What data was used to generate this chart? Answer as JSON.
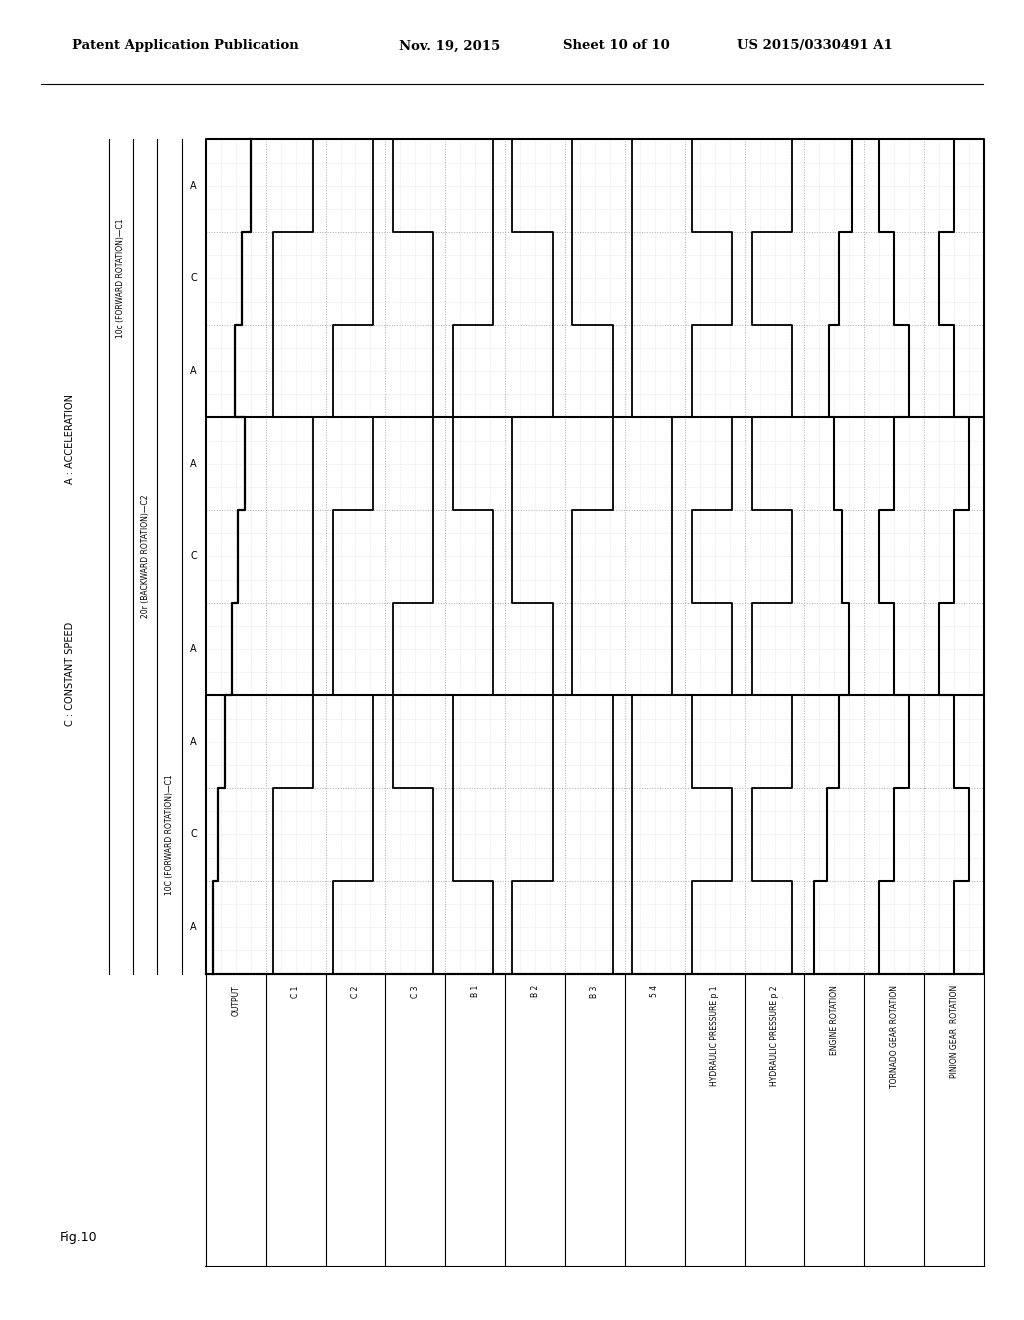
{
  "header_left": "Patent Application Publication",
  "header_mid": "Nov. 19, 2015  Sheet 10 of 10",
  "header_right": "US 2015/0330491 A1",
  "fig_label": "Fig.10",
  "legend_A": "A : ACCELERATION",
  "legend_C": "C : CONSTANT SPEED",
  "section_headers": [
    "10C (FORWARD ROTATION)—C1",
    "20r (BACKWARD ROTATION)—C2",
    "10c (FORWARD ROTATION)—C1"
  ],
  "sub_phase_labels": [
    "A",
    "C",
    "A",
    "A",
    "C",
    "A",
    "A",
    "C",
    "A"
  ],
  "row_labels": [
    "OUTPUT",
    "C 1",
    "C 2",
    "C 3",
    "B 1",
    "B 2",
    "B 3",
    "5 4",
    "HYDRAULIC PRESSURE p 1",
    "HYDRAULIC PRESSURE p 2",
    "ENGINE ROTATION",
    "TORNADO GEAR ROTATION",
    "PINION GEAR  ROTATION"
  ],
  "waveforms": {
    "OUTPUT": [
      0.15,
      0.25,
      0.42,
      0.52,
      0.65,
      0.75,
      0.5,
      0.62,
      0.8
    ],
    "C1": [
      0.05,
      0.05,
      0.85,
      0.85,
      0.85,
      0.85,
      0.05,
      0.05,
      0.85
    ],
    "C2": [
      0.05,
      0.85,
      0.85,
      0.05,
      0.05,
      0.85,
      0.05,
      0.85,
      0.85
    ],
    "C3": [
      0.85,
      0.85,
      0.05,
      0.05,
      0.85,
      0.85,
      0.85,
      0.85,
      0.05
    ],
    "B1": [
      0.85,
      0.05,
      0.05,
      0.85,
      0.85,
      0.05,
      0.05,
      0.85,
      0.85
    ],
    "B2": [
      0.05,
      0.85,
      0.85,
      0.85,
      0.05,
      0.05,
      0.85,
      0.85,
      0.05
    ],
    "B3": [
      0.85,
      0.85,
      0.85,
      0.05,
      0.05,
      0.85,
      0.85,
      0.05,
      0.05
    ],
    "S4": [
      0.05,
      0.05,
      0.05,
      0.85,
      0.85,
      0.85,
      0.05,
      0.05,
      0.05
    ],
    "HP1": [
      0.05,
      0.85,
      0.05,
      0.85,
      0.05,
      0.85,
      0.05,
      0.85,
      0.05
    ],
    "HP2": [
      0.85,
      0.05,
      0.85,
      0.05,
      0.85,
      0.05,
      0.85,
      0.05,
      0.85
    ],
    "ENGINE": [
      0.1,
      0.35,
      0.6,
      0.8,
      0.65,
      0.5,
      0.4,
      0.6,
      0.85
    ],
    "TORNADO": [
      0.2,
      0.5,
      0.8,
      0.5,
      0.2,
      0.5,
      0.8,
      0.5,
      0.2
    ],
    "PINION": [
      0.5,
      0.8,
      0.5,
      0.2,
      0.5,
      0.8,
      0.5,
      0.2,
      0.5
    ]
  },
  "bg_color": "#ffffff",
  "line_color": "#000000",
  "grid_color": "#aaaaaa"
}
